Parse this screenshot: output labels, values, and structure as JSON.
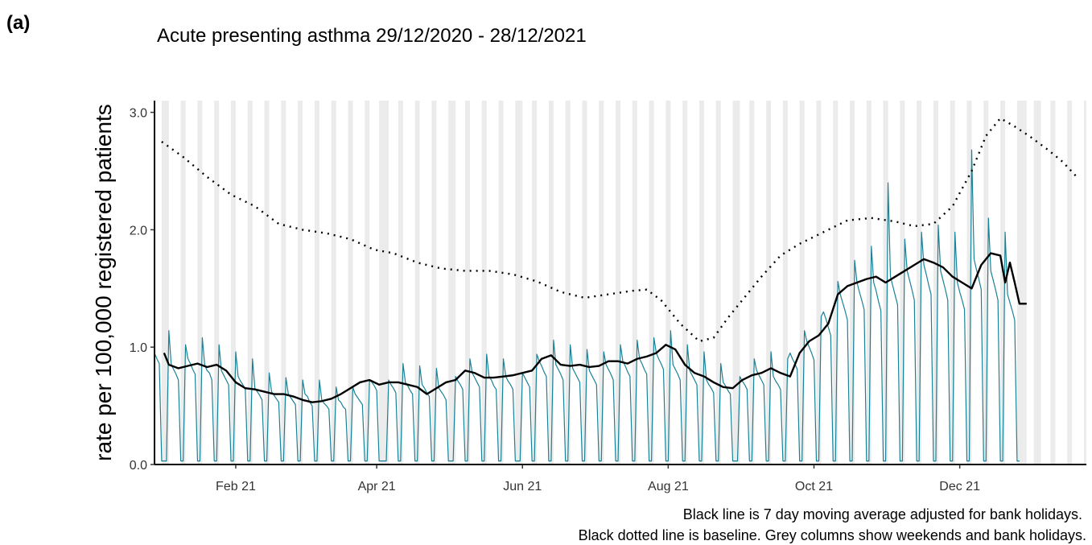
{
  "panel_label": "(a)",
  "chart_data": {
    "type": "line",
    "title": "Acute presenting asthma 29/12/2020 - 28/12/2021",
    "y_label": "rate per 100,000 registered patients",
    "notes": [
      "Black line is 7 day moving average adjusted for bank holidays.",
      "Black dotted line is baseline. Grey columns show weekends and bank holidays."
    ],
    "xlim": [
      0,
      390
    ],
    "xticks": [
      {
        "value": 34,
        "label": "Feb 21"
      },
      {
        "value": 93,
        "label": "Apr 21"
      },
      {
        "value": 154,
        "label": "Jun 21"
      },
      {
        "value": 215,
        "label": "Aug 21"
      },
      {
        "value": 276,
        "label": "Oct 21"
      },
      {
        "value": 337,
        "label": "Dec 21"
      }
    ],
    "ylim": [
      0,
      3.1
    ],
    "yticks": [
      {
        "value": 0,
        "label": "0.0"
      },
      {
        "value": 1,
        "label": "1.0"
      },
      {
        "value": 2,
        "label": "2.0"
      },
      {
        "value": 3,
        "label": "3.0"
      }
    ],
    "shaded_days": [
      3,
      4,
      5,
      11,
      12,
      18,
      19,
      25,
      26,
      32,
      33,
      39,
      40,
      46,
      47,
      53,
      54,
      60,
      61,
      67,
      68,
      74,
      75,
      81,
      82,
      88,
      89,
      94,
      95,
      96,
      97,
      102,
      103,
      109,
      110,
      116,
      117,
      123,
      124,
      125,
      130,
      131,
      137,
      138,
      144,
      145,
      151,
      152,
      153,
      158,
      159,
      165,
      166,
      172,
      173,
      179,
      180,
      186,
      187,
      193,
      194,
      200,
      201,
      207,
      208,
      214,
      215,
      221,
      222,
      228,
      229,
      235,
      236,
      242,
      243,
      244,
      249,
      250,
      256,
      257,
      263,
      264,
      270,
      271,
      277,
      278,
      284,
      285,
      291,
      292,
      298,
      299,
      305,
      306,
      312,
      313,
      319,
      320,
      326,
      327,
      333,
      334,
      340,
      341,
      347,
      348,
      354,
      355,
      361,
      362,
      363,
      364,
      368,
      369,
      370,
      375,
      376,
      382,
      383,
      389
    ],
    "shade_color": "#ebebeb",
    "series": [
      {
        "color": "#1a8296",
        "line_style": "thin",
        "x": [
          0,
          1,
          2,
          3,
          4,
          5,
          6,
          7,
          8,
          9,
          10,
          11,
          12,
          13,
          14,
          15,
          16,
          17,
          18,
          19,
          20,
          21,
          22,
          23,
          24,
          25,
          26,
          27,
          28,
          29,
          30,
          31,
          32,
          33,
          34,
          35,
          36,
          37,
          38,
          39,
          40,
          41,
          42,
          43,
          44,
          45,
          46,
          47,
          48,
          49,
          50,
          51,
          52,
          53,
          54,
          55,
          56,
          57,
          58,
          59,
          60,
          61,
          62,
          63,
          64,
          65,
          66,
          67,
          68,
          69,
          70,
          71,
          72,
          73,
          74,
          75,
          76,
          77,
          78,
          79,
          80,
          81,
          82,
          83,
          84,
          85,
          86,
          87,
          88,
          89,
          90,
          91,
          92,
          93,
          94,
          95,
          96,
          97,
          98,
          99,
          100,
          101,
          102,
          103,
          104,
          105,
          106,
          107,
          108,
          109,
          110,
          111,
          112,
          113,
          114,
          115,
          116,
          117,
          118,
          119,
          120,
          121,
          122,
          123,
          124,
          125,
          126,
          127,
          128,
          129,
          130,
          131,
          132,
          133,
          134,
          135,
          136,
          137,
          138,
          139,
          140,
          141,
          142,
          143,
          144,
          145,
          146,
          147,
          148,
          149,
          150,
          151,
          152,
          153,
          154,
          155,
          156,
          157,
          158,
          159,
          160,
          161,
          162,
          163,
          164,
          165,
          166,
          167,
          168,
          169,
          170,
          171,
          172,
          173,
          174,
          175,
          176,
          177,
          178,
          179,
          180,
          181,
          182,
          183,
          184,
          185,
          186,
          187,
          188,
          189,
          190,
          191,
          192,
          193,
          194,
          195,
          196,
          197,
          198,
          199,
          200,
          201,
          202,
          203,
          204,
          205,
          206,
          207,
          208,
          209,
          210,
          211,
          212,
          213,
          214,
          215,
          216,
          217,
          218,
          219,
          220,
          221,
          222,
          223,
          224,
          225,
          226,
          227,
          228,
          229,
          230,
          231,
          232,
          233,
          234,
          235,
          236,
          237,
          238,
          239,
          240,
          241,
          242,
          243,
          244,
          245,
          246,
          247,
          248,
          249,
          250,
          251,
          252,
          253,
          254,
          255,
          256,
          257,
          258,
          259,
          260,
          261,
          262,
          263,
          264,
          265,
          266,
          267,
          268,
          269,
          270,
          271,
          272,
          273,
          274,
          275,
          276,
          277,
          278,
          279,
          280,
          281,
          282,
          283,
          284,
          285,
          286,
          287,
          288,
          289,
          290,
          291,
          292,
          293,
          294,
          295,
          296,
          297,
          298,
          299,
          300,
          301,
          302,
          303,
          304,
          305,
          306,
          307,
          308,
          309,
          310,
          311,
          312,
          313,
          314,
          315,
          316,
          317,
          318,
          319,
          320,
          321,
          322,
          323,
          324,
          325,
          326,
          327,
          328,
          329,
          330,
          331,
          332,
          333,
          334,
          335,
          336,
          337,
          338,
          339,
          340,
          341,
          342,
          343,
          344,
          345,
          346,
          347,
          348,
          349,
          350,
          351,
          352,
          353,
          354,
          355,
          356,
          357,
          358,
          359,
          360,
          361,
          362
        ],
        "values": [
          0.95,
          0.9,
          0.86,
          0.03,
          0.03,
          0.03,
          1.14,
          0.85,
          0.81,
          0.77,
          0.72,
          0.03,
          0.03,
          1.02,
          0.9,
          0.86,
          0.81,
          0.77,
          0.03,
          0.03,
          1.08,
          0.85,
          0.8,
          0.78,
          0.72,
          0.03,
          0.03,
          1.02,
          0.8,
          0.76,
          0.72,
          0.68,
          0.03,
          0.03,
          0.96,
          0.75,
          0.71,
          0.68,
          0.64,
          0.03,
          0.03,
          0.9,
          0.65,
          0.62,
          0.59,
          0.55,
          0.03,
          0.03,
          0.78,
          0.62,
          0.59,
          0.56,
          0.53,
          0.03,
          0.03,
          0.74,
          0.6,
          0.57,
          0.54,
          0.51,
          0.03,
          0.03,
          0.72,
          0.6,
          0.58,
          0.53,
          0.5,
          0.03,
          0.03,
          0.72,
          0.55,
          0.52,
          0.5,
          0.47,
          0.03,
          0.03,
          0.66,
          0.55,
          0.53,
          0.49,
          0.47,
          0.03,
          0.03,
          0.66,
          0.6,
          0.57,
          0.54,
          0.51,
          0.03,
          0.03,
          0.72,
          0.7,
          0.67,
          0.63,
          0.03,
          0.03,
          0.03,
          0.03,
          0.72,
          0.68,
          0.65,
          0.61,
          0.03,
          0.03,
          0.86,
          0.7,
          0.67,
          0.63,
          0.6,
          0.03,
          0.03,
          0.84,
          0.68,
          0.65,
          0.61,
          0.58,
          0.03,
          0.03,
          0.82,
          0.65,
          0.62,
          0.59,
          0.55,
          0.03,
          0.03,
          0.03,
          0.75,
          0.71,
          0.68,
          0.64,
          0.03,
          0.03,
          0.9,
          0.78,
          0.74,
          0.7,
          0.66,
          0.03,
          0.03,
          0.94,
          0.75,
          0.72,
          0.67,
          0.64,
          0.03,
          0.03,
          0.9,
          0.75,
          0.71,
          0.68,
          0.64,
          0.03,
          0.03,
          0.03,
          0.78,
          0.74,
          0.7,
          0.66,
          0.03,
          0.03,
          0.94,
          0.88,
          0.84,
          0.79,
          0.75,
          0.03,
          0.03,
          1.06,
          0.85,
          0.81,
          0.77,
          0.72,
          0.03,
          0.03,
          1.02,
          0.82,
          0.78,
          0.74,
          0.7,
          0.03,
          0.03,
          0.98,
          0.8,
          0.76,
          0.72,
          0.68,
          0.03,
          0.03,
          0.96,
          0.85,
          0.81,
          0.77,
          0.72,
          0.03,
          0.03,
          1.02,
          0.88,
          0.84,
          0.79,
          0.75,
          0.03,
          0.03,
          1.06,
          0.9,
          0.86,
          0.81,
          0.77,
          0.03,
          0.03,
          1.08,
          0.95,
          0.9,
          0.86,
          0.81,
          0.03,
          0.03,
          1.14,
          0.85,
          0.81,
          0.77,
          0.72,
          0.03,
          0.03,
          1.02,
          0.8,
          0.76,
          0.72,
          0.68,
          0.03,
          0.03,
          0.96,
          0.72,
          0.68,
          0.65,
          0.61,
          0.03,
          0.03,
          0.86,
          0.7,
          0.67,
          0.63,
          0.6,
          0.03,
          0.03,
          0.03,
          0.75,
          0.71,
          0.68,
          0.64,
          0.03,
          0.03,
          0.9,
          0.8,
          0.76,
          0.72,
          0.68,
          0.03,
          0.03,
          0.96,
          0.75,
          0.71,
          0.68,
          0.64,
          0.03,
          0.03,
          0.9,
          0.95,
          0.9,
          0.86,
          0.81,
          0.03,
          0.03,
          1.14,
          1.05,
          1.0,
          0.95,
          0.89,
          0.03,
          0.03,
          1.26,
          1.3,
          1.24,
          1.17,
          1.1,
          0.03,
          0.03,
          1.56,
          1.45,
          1.38,
          1.31,
          1.23,
          0.03,
          0.03,
          1.74,
          1.55,
          1.47,
          1.4,
          1.32,
          0.03,
          0.03,
          1.86,
          1.55,
          1.48,
          1.39,
          1.31,
          0.03,
          0.03,
          2.4,
          1.6,
          1.52,
          1.44,
          1.36,
          0.03,
          0.03,
          1.92,
          1.65,
          1.57,
          1.49,
          1.4,
          0.03,
          0.03,
          1.98,
          1.7,
          1.62,
          1.53,
          1.45,
          0.03,
          0.03,
          2.04,
          1.65,
          1.57,
          1.49,
          1.4,
          0.03,
          0.03,
          1.98,
          1.55,
          1.47,
          1.4,
          1.32,
          0.03,
          0.03,
          2.68,
          1.75,
          1.66,
          1.58,
          1.49,
          0.03,
          0.03,
          2.1,
          1.65,
          1.57,
          1.49,
          1.4,
          0.03,
          0.03,
          1.98,
          1.45,
          1.38,
          1.31,
          1.23,
          0.03,
          0.03
        ]
      },
      {
        "color": "#000000",
        "line_style": "bold",
        "x": [
          4,
          6,
          10,
          14,
          18,
          22,
          26,
          30,
          34,
          38,
          42,
          46,
          50,
          54,
          58,
          62,
          66,
          70,
          74,
          78,
          82,
          86,
          90,
          94,
          98,
          102,
          106,
          110,
          114,
          118,
          122,
          126,
          130,
          134,
          138,
          142,
          146,
          150,
          154,
          158,
          162,
          166,
          170,
          174,
          178,
          182,
          186,
          190,
          194,
          198,
          202,
          206,
          210,
          214,
          218,
          222,
          226,
          230,
          234,
          238,
          242,
          246,
          250,
          254,
          258,
          262,
          266,
          270,
          274,
          278,
          282,
          286,
          290,
          294,
          298,
          302,
          306,
          310,
          314,
          318,
          322,
          326,
          330,
          334,
          338,
          342,
          346,
          350,
          354,
          356,
          358,
          360,
          362,
          365
        ],
        "values": [
          0.95,
          0.85,
          0.82,
          0.84,
          0.86,
          0.83,
          0.85,
          0.8,
          0.7,
          0.65,
          0.64,
          0.62,
          0.6,
          0.6,
          0.58,
          0.55,
          0.53,
          0.54,
          0.56,
          0.6,
          0.65,
          0.7,
          0.72,
          0.68,
          0.7,
          0.7,
          0.68,
          0.66,
          0.6,
          0.65,
          0.7,
          0.72,
          0.8,
          0.78,
          0.74,
          0.74,
          0.75,
          0.76,
          0.78,
          0.8,
          0.9,
          0.93,
          0.85,
          0.84,
          0.85,
          0.83,
          0.84,
          0.88,
          0.88,
          0.86,
          0.9,
          0.92,
          0.95,
          1.02,
          0.98,
          0.85,
          0.78,
          0.75,
          0.7,
          0.66,
          0.65,
          0.72,
          0.76,
          0.78,
          0.82,
          0.78,
          0.75,
          0.95,
          1.05,
          1.1,
          1.2,
          1.45,
          1.52,
          1.55,
          1.58,
          1.6,
          1.55,
          1.6,
          1.65,
          1.7,
          1.75,
          1.72,
          1.68,
          1.6,
          1.55,
          1.5,
          1.7,
          1.8,
          1.78,
          1.55,
          1.72,
          1.55,
          1.37,
          1.37
        ]
      },
      {
        "color": "#000000",
        "line_style": "dotted",
        "x": [
          3,
          12,
          22,
          32,
          42,
          52,
          62,
          72,
          82,
          92,
          100,
          110,
          120,
          130,
          140,
          150,
          160,
          170,
          180,
          190,
          200,
          206,
          212,
          220,
          228,
          234,
          240,
          246,
          254,
          262,
          270,
          280,
          290,
          300,
          310,
          318,
          326,
          334,
          342,
          348,
          354,
          360,
          366,
          374,
          380,
          386
        ],
        "values": [
          2.75,
          2.62,
          2.45,
          2.3,
          2.2,
          2.05,
          2.0,
          1.97,
          1.92,
          1.83,
          1.8,
          1.72,
          1.67,
          1.65,
          1.65,
          1.62,
          1.56,
          1.47,
          1.42,
          1.45,
          1.48,
          1.49,
          1.4,
          1.2,
          1.05,
          1.08,
          1.25,
          1.4,
          1.6,
          1.78,
          1.88,
          1.98,
          2.08,
          2.1,
          2.07,
          2.03,
          2.05,
          2.2,
          2.5,
          2.8,
          2.95,
          2.88,
          2.8,
          2.68,
          2.58,
          2.45
        ]
      }
    ]
  }
}
